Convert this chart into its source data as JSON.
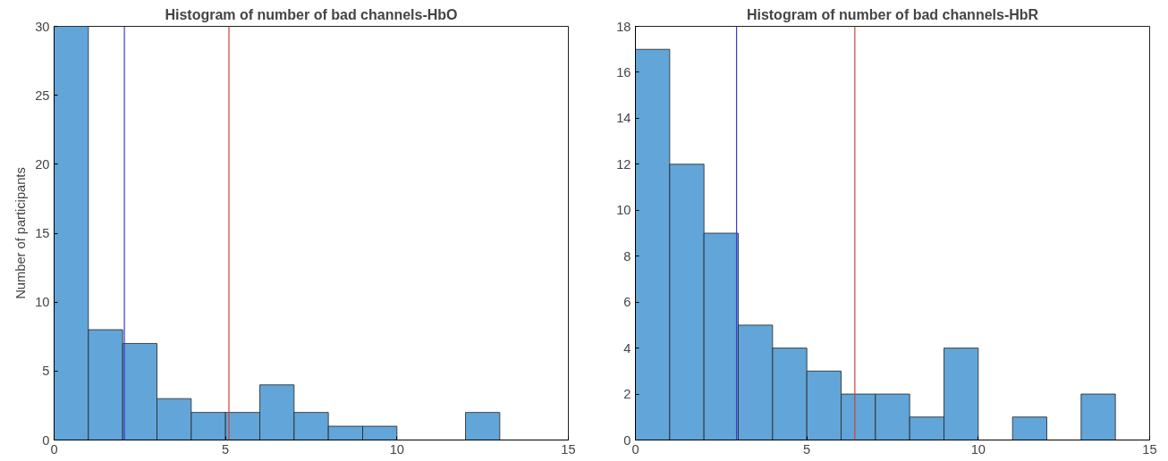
{
  "chart_data": [
    {
      "type": "histogram",
      "title": "Histogram of number of bad channels-HbO",
      "ylabel": "Number of participants",
      "bins": [
        0,
        1,
        2,
        3,
        4,
        5,
        6,
        7,
        8,
        9,
        10,
        11,
        12,
        13
      ],
      "values": [
        30,
        8,
        7,
        3,
        2,
        2,
        4,
        2,
        1,
        1,
        0,
        0,
        2
      ],
      "color": "#62a5d8",
      "xlim": [
        0,
        15
      ],
      "xticks": [
        0,
        5,
        10,
        15
      ],
      "ylim": [
        0,
        30
      ],
      "yticks": [
        0,
        5,
        10,
        15,
        20,
        25,
        30
      ],
      "grid": false,
      "ref_lines": [
        {
          "axis": "x",
          "value": 2.05,
          "color": "#3b3bd0"
        },
        {
          "axis": "x",
          "value": 5.1,
          "color": "#d04040"
        }
      ]
    },
    {
      "type": "histogram",
      "title": "Histogram of number of bad channels-HbR",
      "bins": [
        0,
        1,
        2,
        3,
        4,
        5,
        6,
        7,
        8,
        9,
        10,
        11,
        12,
        13,
        14
      ],
      "values": [
        17,
        12,
        9,
        5,
        4,
        3,
        2,
        2,
        1,
        4,
        0,
        1,
        0,
        2
      ],
      "color": "#62a5d8",
      "xlim": [
        0,
        15
      ],
      "xticks": [
        0,
        5,
        10,
        15
      ],
      "ylim": [
        0,
        18
      ],
      "yticks": [
        0,
        2,
        4,
        6,
        8,
        10,
        12,
        14,
        16,
        18
      ],
      "grid": false,
      "ref_lines": [
        {
          "axis": "x",
          "value": 2.95,
          "color": "#3b3bd0"
        },
        {
          "axis": "x",
          "value": 6.4,
          "color": "#d04040"
        }
      ]
    }
  ]
}
